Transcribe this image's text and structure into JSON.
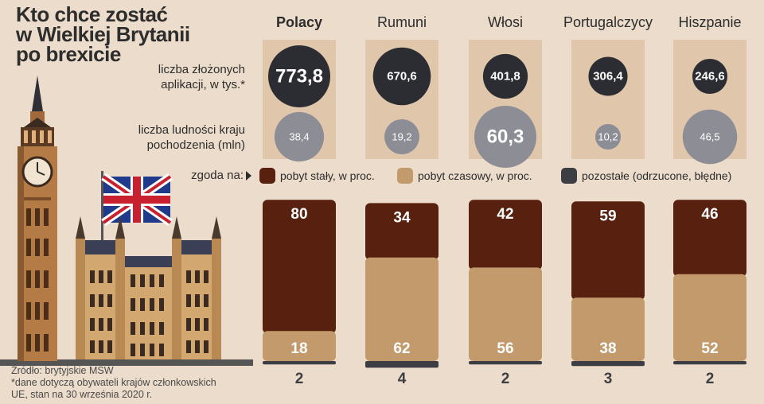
{
  "title": [
    "Kto chce zostać",
    "w Wielkiej Brytanii",
    "po brexicie"
  ],
  "row_labels": {
    "applications": [
      "liczba złożonych",
      "aplikacji, w tys.*"
    ],
    "population": [
      "liczba ludności kraju",
      "pochodzenia (mln)"
    ],
    "consent": "zgoda na:"
  },
  "legend": [
    {
      "label": "pobyt stały, w proc.",
      "color": "#58200f"
    },
    {
      "label": "pobyt czasowy, w proc.",
      "color": "#c39a6c"
    },
    {
      "label": "pozostałe (odrzucone, błędne)",
      "color": "#3d3d44"
    }
  ],
  "colors": {
    "background": "#ecdccb",
    "column_bg": "#e0c7ab",
    "applications_circle": "#2c2c33",
    "population_circle": "#8d8d95",
    "permanent": "#58200f",
    "temporary": "#c39a6c",
    "other": "#3d3d44"
  },
  "footer": [
    "Źródło: brytyjskie MSW",
    "*dane dotyczą obywateli krajów członkowskich",
    "UE, stan na 30 września 2020 r."
  ],
  "chart_data": {
    "type": "bar",
    "stacked": true,
    "categories": [
      "Polacy",
      "Rumuni",
      "Włosi",
      "Portugalczycy",
      "Hiszpanie"
    ],
    "applications": {
      "label": "liczba złożonych aplikacji, w tys.*",
      "values": [
        773.8,
        670.6,
        401.8,
        306.4,
        246.6
      ],
      "display": [
        "773,8",
        "670,6",
        "401,8",
        "306,4",
        "246,6"
      ]
    },
    "population": {
      "label": "liczba ludności kraju pochodzenia (mln)",
      "values": [
        38.4,
        19.2,
        60.3,
        10.2,
        46.5
      ],
      "display": [
        "38,4",
        "19,2",
        "60,3",
        "10,2",
        "46,5"
      ]
    },
    "series": [
      {
        "name": "pobyt stały, w proc.",
        "values": [
          80,
          34,
          42,
          59,
          46
        ]
      },
      {
        "name": "pobyt czasowy, w proc.",
        "values": [
          18,
          62,
          56,
          38,
          52
        ]
      },
      {
        "name": "pozostałe (odrzucone, błędne)",
        "values": [
          2,
          4,
          2,
          3,
          2
        ]
      }
    ],
    "ylim": [
      0,
      100
    ]
  }
}
